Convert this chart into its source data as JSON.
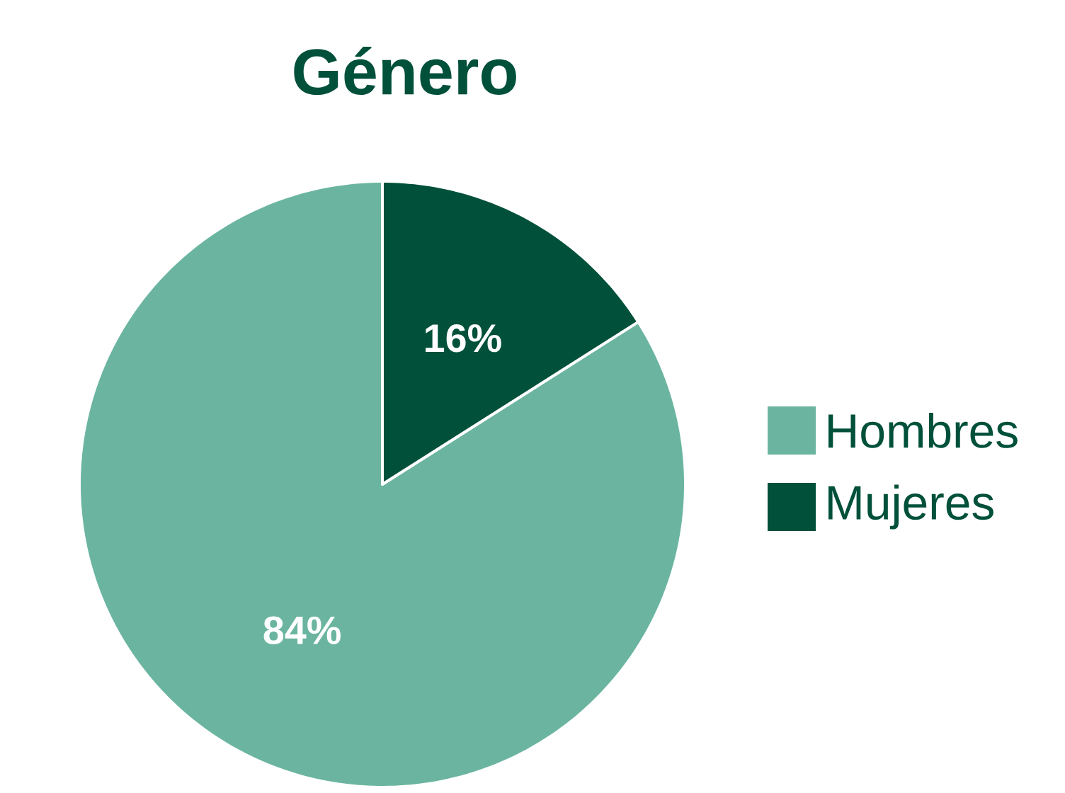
{
  "chart_data": {
    "type": "pie",
    "title": "Género",
    "categories": [
      "Hombres",
      "Mujeres"
    ],
    "values": [
      84,
      16
    ],
    "colors": [
      "#6bb5a0",
      "#00503a"
    ],
    "value_labels": [
      "84%",
      "16%"
    ],
    "legend": "right"
  }
}
